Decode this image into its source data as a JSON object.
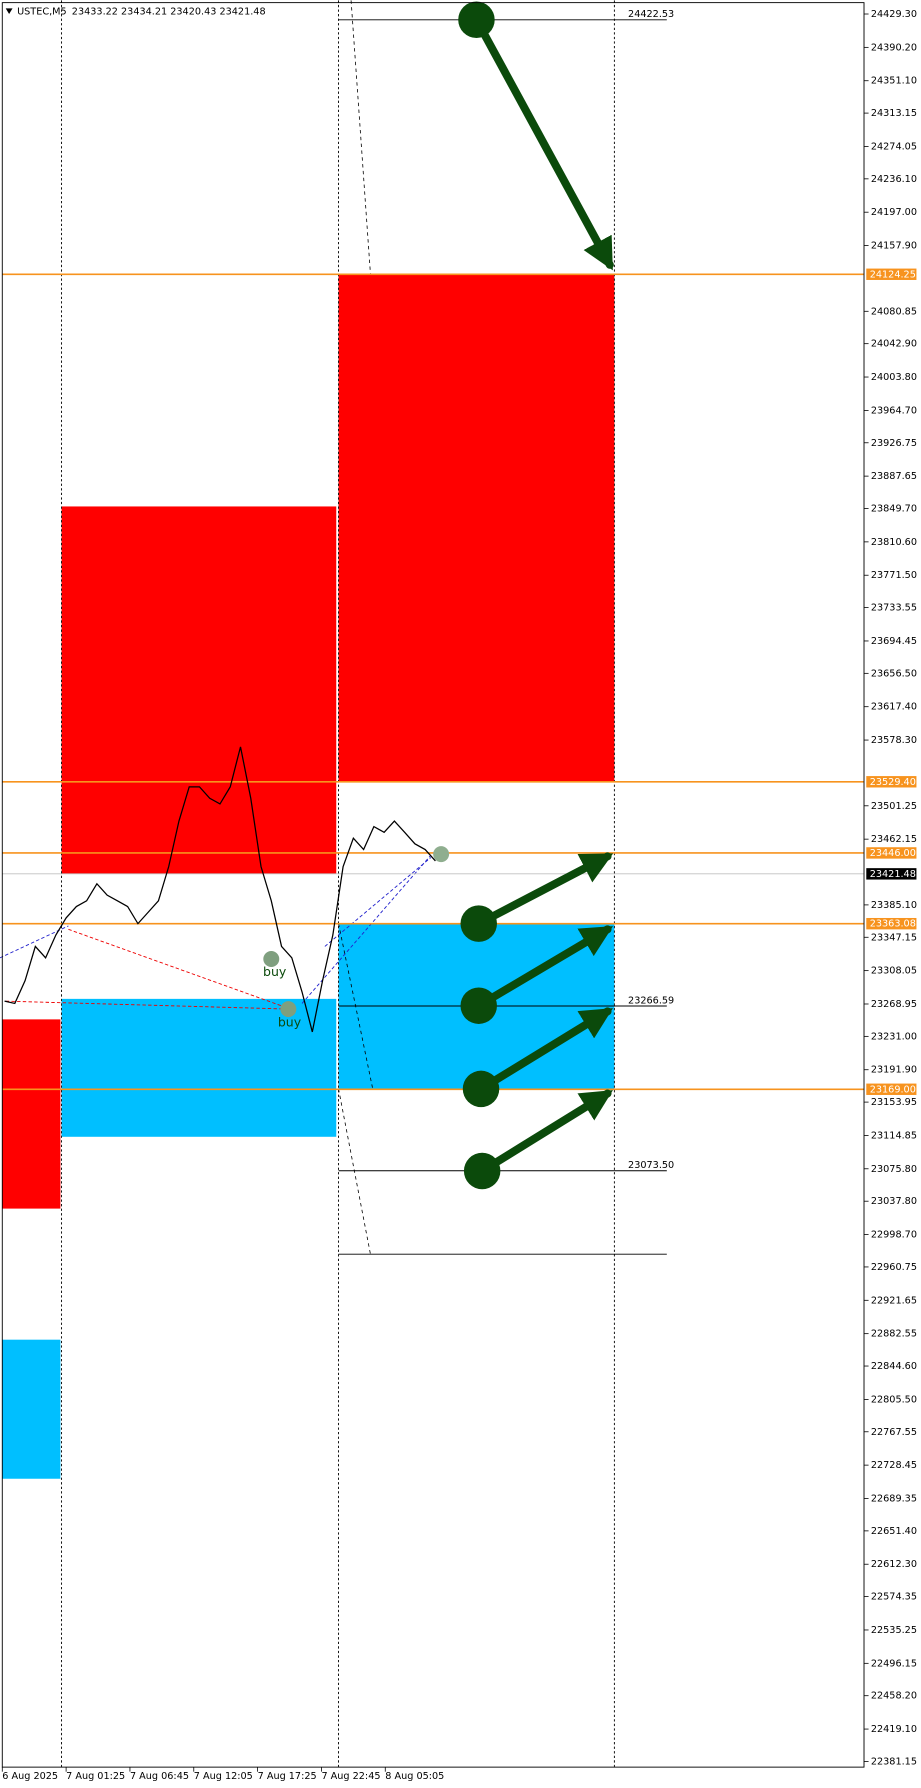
{
  "chart_data": {
    "type": "line",
    "title": "USTEC,M5",
    "subtitle": "23433.22 23434.21 23420.43 23421.48",
    "ylim": [
      22363.8,
      24445.3
    ],
    "yticks": [
      {
        "value": 24429.3,
        "label": "24429.30"
      },
      {
        "value": 24390.2,
        "label": "24390.20"
      },
      {
        "value": 24351.1,
        "label": "24351.10"
      },
      24313.15,
      {
        "value": 24274.05,
        "label": "24274.05"
      },
      {
        "value": 24236.1,
        "label": "24236.10"
      },
      {
        "value": 24197,
        "label": "24197.00"
      },
      {
        "value": 24157.9,
        "label": "24157.90"
      },
      24080.85,
      {
        "value": 24042.9,
        "label": "24042.90"
      },
      {
        "value": 24003.8,
        "label": "24003.80"
      },
      {
        "value": 23964.7,
        "label": "23964.70"
      },
      23926.75,
      23887.65,
      {
        "value": 23849.7,
        "label": "23849.70"
      },
      {
        "value": 23810.6,
        "label": "23810.60"
      },
      {
        "value": 23771.5,
        "label": "23771.50"
      },
      23733.55,
      23694.45,
      {
        "value": 23656.5,
        "label": "23656.50"
      },
      {
        "value": 23617.4,
        "label": "23617.40"
      },
      {
        "value": 23578.3,
        "label": "23578.30"
      },
      23501.25,
      23462.15,
      {
        "value": 23385.1,
        "label": "23385.10"
      },
      23347.15,
      {
        "value": 23308.05,
        "label": "23308.05"
      },
      23268.95,
      {
        "value": 23231,
        "label": "23231.00"
      },
      {
        "value": 23191.9,
        "label": "23191.90"
      },
      23153.95,
      23114.85,
      {
        "value": 23075.8,
        "label": "23075.80"
      },
      {
        "value": 23037.8,
        "label": "23037.80"
      },
      {
        "value": 22998.7,
        "label": "22998.70"
      },
      22960.75,
      22921.65,
      22882.55,
      {
        "value": 22844.6,
        "label": "22844.60"
      },
      {
        "value": 22805.5,
        "label": "22805.50"
      },
      22767.55,
      22728.45,
      22689.35,
      {
        "value": 22651.4,
        "label": "22651.40"
      },
      {
        "value": 22612.3,
        "label": "22612.30"
      },
      22574.35,
      22535.25,
      22496.15,
      {
        "value": 22458.2,
        "label": "22458.20"
      },
      {
        "value": 22419.1,
        "label": "22419.10"
      },
      22381.15
    ],
    "x_labels": [
      "6 Aug 2025",
      "7 Aug 01:25",
      "7 Aug 06:45",
      "7 Aug 12:05",
      "7 Aug 17:25",
      "7 Aug 22:45",
      "8 Aug 05:05"
    ],
    "series": [
      {
        "name": "USTEC,M5",
        "color": "#000000",
        "values": [
          23272.3,
          23269.6,
          23296.3,
          23336.4,
          23323.1,
          23349.8,
          23369.8,
          23383.2,
          23389.9,
          23409.9,
          23396.6,
          23389.9,
          23383.2,
          23363.1,
          23376.5,
          23389.9,
          23430.0,
          23483.4,
          23523.5,
          23523.5,
          23510.1,
          23503.4,
          23523.5,
          23570.3,
          23510.1,
          23430.0,
          23389.9,
          23336.4,
          23323.1,
          23283.0,
          23236.2,
          23296.3,
          23349.8,
          23430.0,
          23463.4,
          23450.0,
          23476.8,
          23470.1,
          23483.4,
          23470.1,
          23456.7,
          23450.0,
          23436.6
        ]
      }
    ],
    "orange_levels": [
      24124.25,
      {
        "value": 23529.4,
        "label": "23529.40"
      },
      {
        "value": 23446,
        "label": "23446.00"
      },
      23363.08,
      {
        "value": 23169,
        "label": "23169.00"
      }
    ],
    "orange_color": "#f7931e",
    "last_price": 23421.48,
    "black_levels": [
      24422.53,
      23266.59,
      {
        "value": 23073.5,
        "label": "23073.50"
      }
    ],
    "buy_labels": [
      "buy",
      "buy"
    ]
  }
}
